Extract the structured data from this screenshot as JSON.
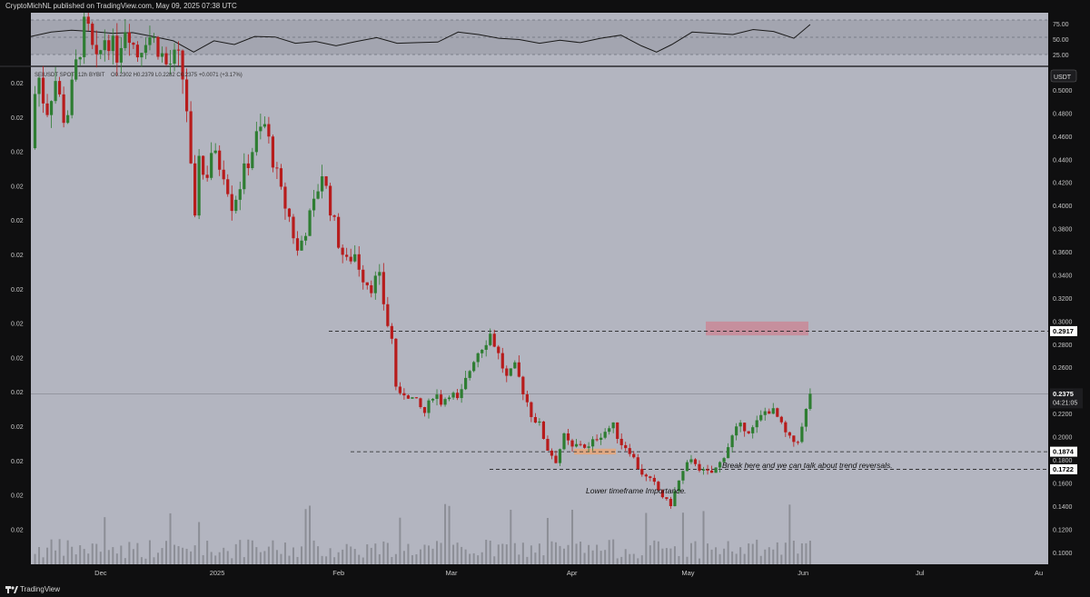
{
  "header": {
    "publish_text": "CryptoMichNL published on TradingView.com, May 09, 2025 07:38 UTC"
  },
  "footer": {
    "brand": "TradingView"
  },
  "legend": {
    "symbol": "SEIUSDT SPOT",
    "interval": "12h",
    "exchange": "BYBIT",
    "ohlc": "O0.2302  H0.2379  L0.2282  C0.2375  +0.0071 (+3.17%)"
  },
  "price_axis": {
    "currency": "USDT",
    "ticks": [
      "0.5000",
      "0.4800",
      "0.4600",
      "0.4400",
      "0.4200",
      "0.4000",
      "0.3800",
      "0.3600",
      "0.3400",
      "0.3200",
      "0.3000",
      "0.2800",
      "0.2600",
      "0.2400",
      "0.2200",
      "0.2000",
      "0.1800",
      "0.1600",
      "0.1400",
      "0.1200",
      "0.1000"
    ],
    "current_price": "0.2375",
    "countdown": "04:21:05",
    "level_labels": [
      "0.2917",
      "0.1874",
      "0.1722"
    ]
  },
  "left_axis": {
    "ticks": [
      "0.02",
      "0.02",
      "0.02",
      "0.02",
      "0.02",
      "0.02",
      "0.02",
      "0.02",
      "0.02",
      "0.02",
      "0.02",
      "0.02",
      "0.02",
      "0.02",
      "0.02",
      "0.02"
    ]
  },
  "rsi_axis": {
    "ticks": [
      "75.00",
      "50.00",
      "25.00"
    ]
  },
  "time_axis": {
    "ticks": [
      "Dec",
      "2025",
      "Feb",
      "Mar",
      "Apr",
      "May",
      "Jun",
      "Jul",
      "Au"
    ]
  },
  "annotations": {
    "break_text": "Break here and we can talk about trend reversals.",
    "lower_tf_text": "Lower timeframe Importance."
  },
  "colors": {
    "background": "#b3b5c0",
    "up_candle": "#2e7d32",
    "down_candle": "#b71c1c",
    "volume": "#8c8e96",
    "resistance_zone": "#c98896",
    "support_zone": "#e6a678",
    "rsi_band": "#9fa1ab"
  },
  "chart_data": {
    "type": "candlestick",
    "price_range": [
      0.09,
      0.52
    ],
    "resistance_zone": [
      0.288,
      0.3
    ],
    "support_zone": [
      0.185,
      0.19
    ],
    "levels": [
      0.2917,
      0.2375,
      0.1874,
      0.1722
    ],
    "rsi_range": [
      10,
      90
    ],
    "rsi_band": [
      30,
      70
    ],
    "close_path": [
      [
        0.0,
        0.45
      ],
      [
        0.006,
        0.52
      ],
      [
        0.015,
        0.48
      ],
      [
        0.024,
        0.51
      ],
      [
        0.034,
        0.47
      ],
      [
        0.044,
        0.52
      ],
      [
        0.054,
        0.56
      ],
      [
        0.064,
        0.52
      ],
      [
        0.074,
        0.55
      ],
      [
        0.084,
        0.53
      ],
      [
        0.094,
        0.56
      ],
      [
        0.104,
        0.53
      ],
      [
        0.114,
        0.55
      ],
      [
        0.124,
        0.54
      ],
      [
        0.134,
        0.52
      ],
      [
        0.144,
        0.53
      ],
      [
        0.152,
        0.5
      ],
      [
        0.161,
        0.38
      ],
      [
        0.166,
        0.46
      ],
      [
        0.171,
        0.41
      ],
      [
        0.176,
        0.45
      ],
      [
        0.182,
        0.44
      ],
      [
        0.19,
        0.43
      ],
      [
        0.198,
        0.4
      ],
      [
        0.206,
        0.42
      ],
      [
        0.214,
        0.44
      ],
      [
        0.222,
        0.46
      ],
      [
        0.23,
        0.47
      ],
      [
        0.238,
        0.44
      ],
      [
        0.246,
        0.41
      ],
      [
        0.254,
        0.39
      ],
      [
        0.262,
        0.36
      ],
      [
        0.27,
        0.38
      ],
      [
        0.278,
        0.4
      ],
      [
        0.286,
        0.43
      ],
      [
        0.294,
        0.4
      ],
      [
        0.302,
        0.37
      ],
      [
        0.31,
        0.35
      ],
      [
        0.318,
        0.36
      ],
      [
        0.326,
        0.34
      ],
      [
        0.334,
        0.33
      ],
      [
        0.342,
        0.34
      ],
      [
        0.35,
        0.3
      ],
      [
        0.356,
        0.28
      ],
      [
        0.36,
        0.23
      ],
      [
        0.368,
        0.24
      ],
      [
        0.378,
        0.23
      ],
      [
        0.388,
        0.22
      ],
      [
        0.396,
        0.24
      ],
      [
        0.404,
        0.23
      ],
      [
        0.412,
        0.24
      ],
      [
        0.42,
        0.23
      ],
      [
        0.428,
        0.25
      ],
      [
        0.436,
        0.27
      ],
      [
        0.444,
        0.28
      ],
      [
        0.452,
        0.29
      ],
      [
        0.46,
        0.27
      ],
      [
        0.468,
        0.25
      ],
      [
        0.476,
        0.26
      ],
      [
        0.484,
        0.24
      ],
      [
        0.492,
        0.22
      ],
      [
        0.5,
        0.21
      ],
      [
        0.508,
        0.19
      ],
      [
        0.516,
        0.18
      ],
      [
        0.524,
        0.2
      ],
      [
        0.532,
        0.19
      ],
      [
        0.54,
        0.195
      ],
      [
        0.548,
        0.19
      ],
      [
        0.556,
        0.2
      ],
      [
        0.564,
        0.205
      ],
      [
        0.572,
        0.21
      ],
      [
        0.58,
        0.195
      ],
      [
        0.588,
        0.19
      ],
      [
        0.596,
        0.175
      ],
      [
        0.604,
        0.165
      ],
      [
        0.612,
        0.16
      ],
      [
        0.62,
        0.15
      ],
      [
        0.628,
        0.14
      ],
      [
        0.636,
        0.16
      ],
      [
        0.644,
        0.175
      ],
      [
        0.652,
        0.18
      ],
      [
        0.66,
        0.17
      ],
      [
        0.668,
        0.168
      ],
      [
        0.676,
        0.175
      ],
      [
        0.684,
        0.19
      ],
      [
        0.692,
        0.205
      ],
      [
        0.7,
        0.21
      ],
      [
        0.708,
        0.205
      ],
      [
        0.716,
        0.215
      ],
      [
        0.724,
        0.225
      ],
      [
        0.732,
        0.22
      ],
      [
        0.74,
        0.205
      ],
      [
        0.748,
        0.195
      ],
      [
        0.756,
        0.2
      ],
      [
        0.766,
        0.2375
      ]
    ],
    "rsi_path": [
      [
        0.0,
        55
      ],
      [
        0.02,
        62
      ],
      [
        0.04,
        65
      ],
      [
        0.06,
        63
      ],
      [
        0.08,
        60
      ],
      [
        0.1,
        61
      ],
      [
        0.12,
        55
      ],
      [
        0.14,
        48
      ],
      [
        0.16,
        30
      ],
      [
        0.18,
        48
      ],
      [
        0.2,
        42
      ],
      [
        0.22,
        55
      ],
      [
        0.24,
        54
      ],
      [
        0.26,
        44
      ],
      [
        0.28,
        47
      ],
      [
        0.3,
        40
      ],
      [
        0.32,
        47
      ],
      [
        0.34,
        53
      ],
      [
        0.36,
        44
      ],
      [
        0.38,
        45
      ],
      [
        0.4,
        46
      ],
      [
        0.42,
        62
      ],
      [
        0.44,
        58
      ],
      [
        0.46,
        52
      ],
      [
        0.48,
        50
      ],
      [
        0.5,
        44
      ],
      [
        0.52,
        49
      ],
      [
        0.54,
        45
      ],
      [
        0.56,
        52
      ],
      [
        0.58,
        57
      ],
      [
        0.6,
        40
      ],
      [
        0.615,
        30
      ],
      [
        0.63,
        42
      ],
      [
        0.65,
        62
      ],
      [
        0.67,
        60
      ],
      [
        0.69,
        58
      ],
      [
        0.71,
        66
      ],
      [
        0.73,
        63
      ],
      [
        0.75,
        52
      ],
      [
        0.766,
        74
      ]
    ]
  }
}
